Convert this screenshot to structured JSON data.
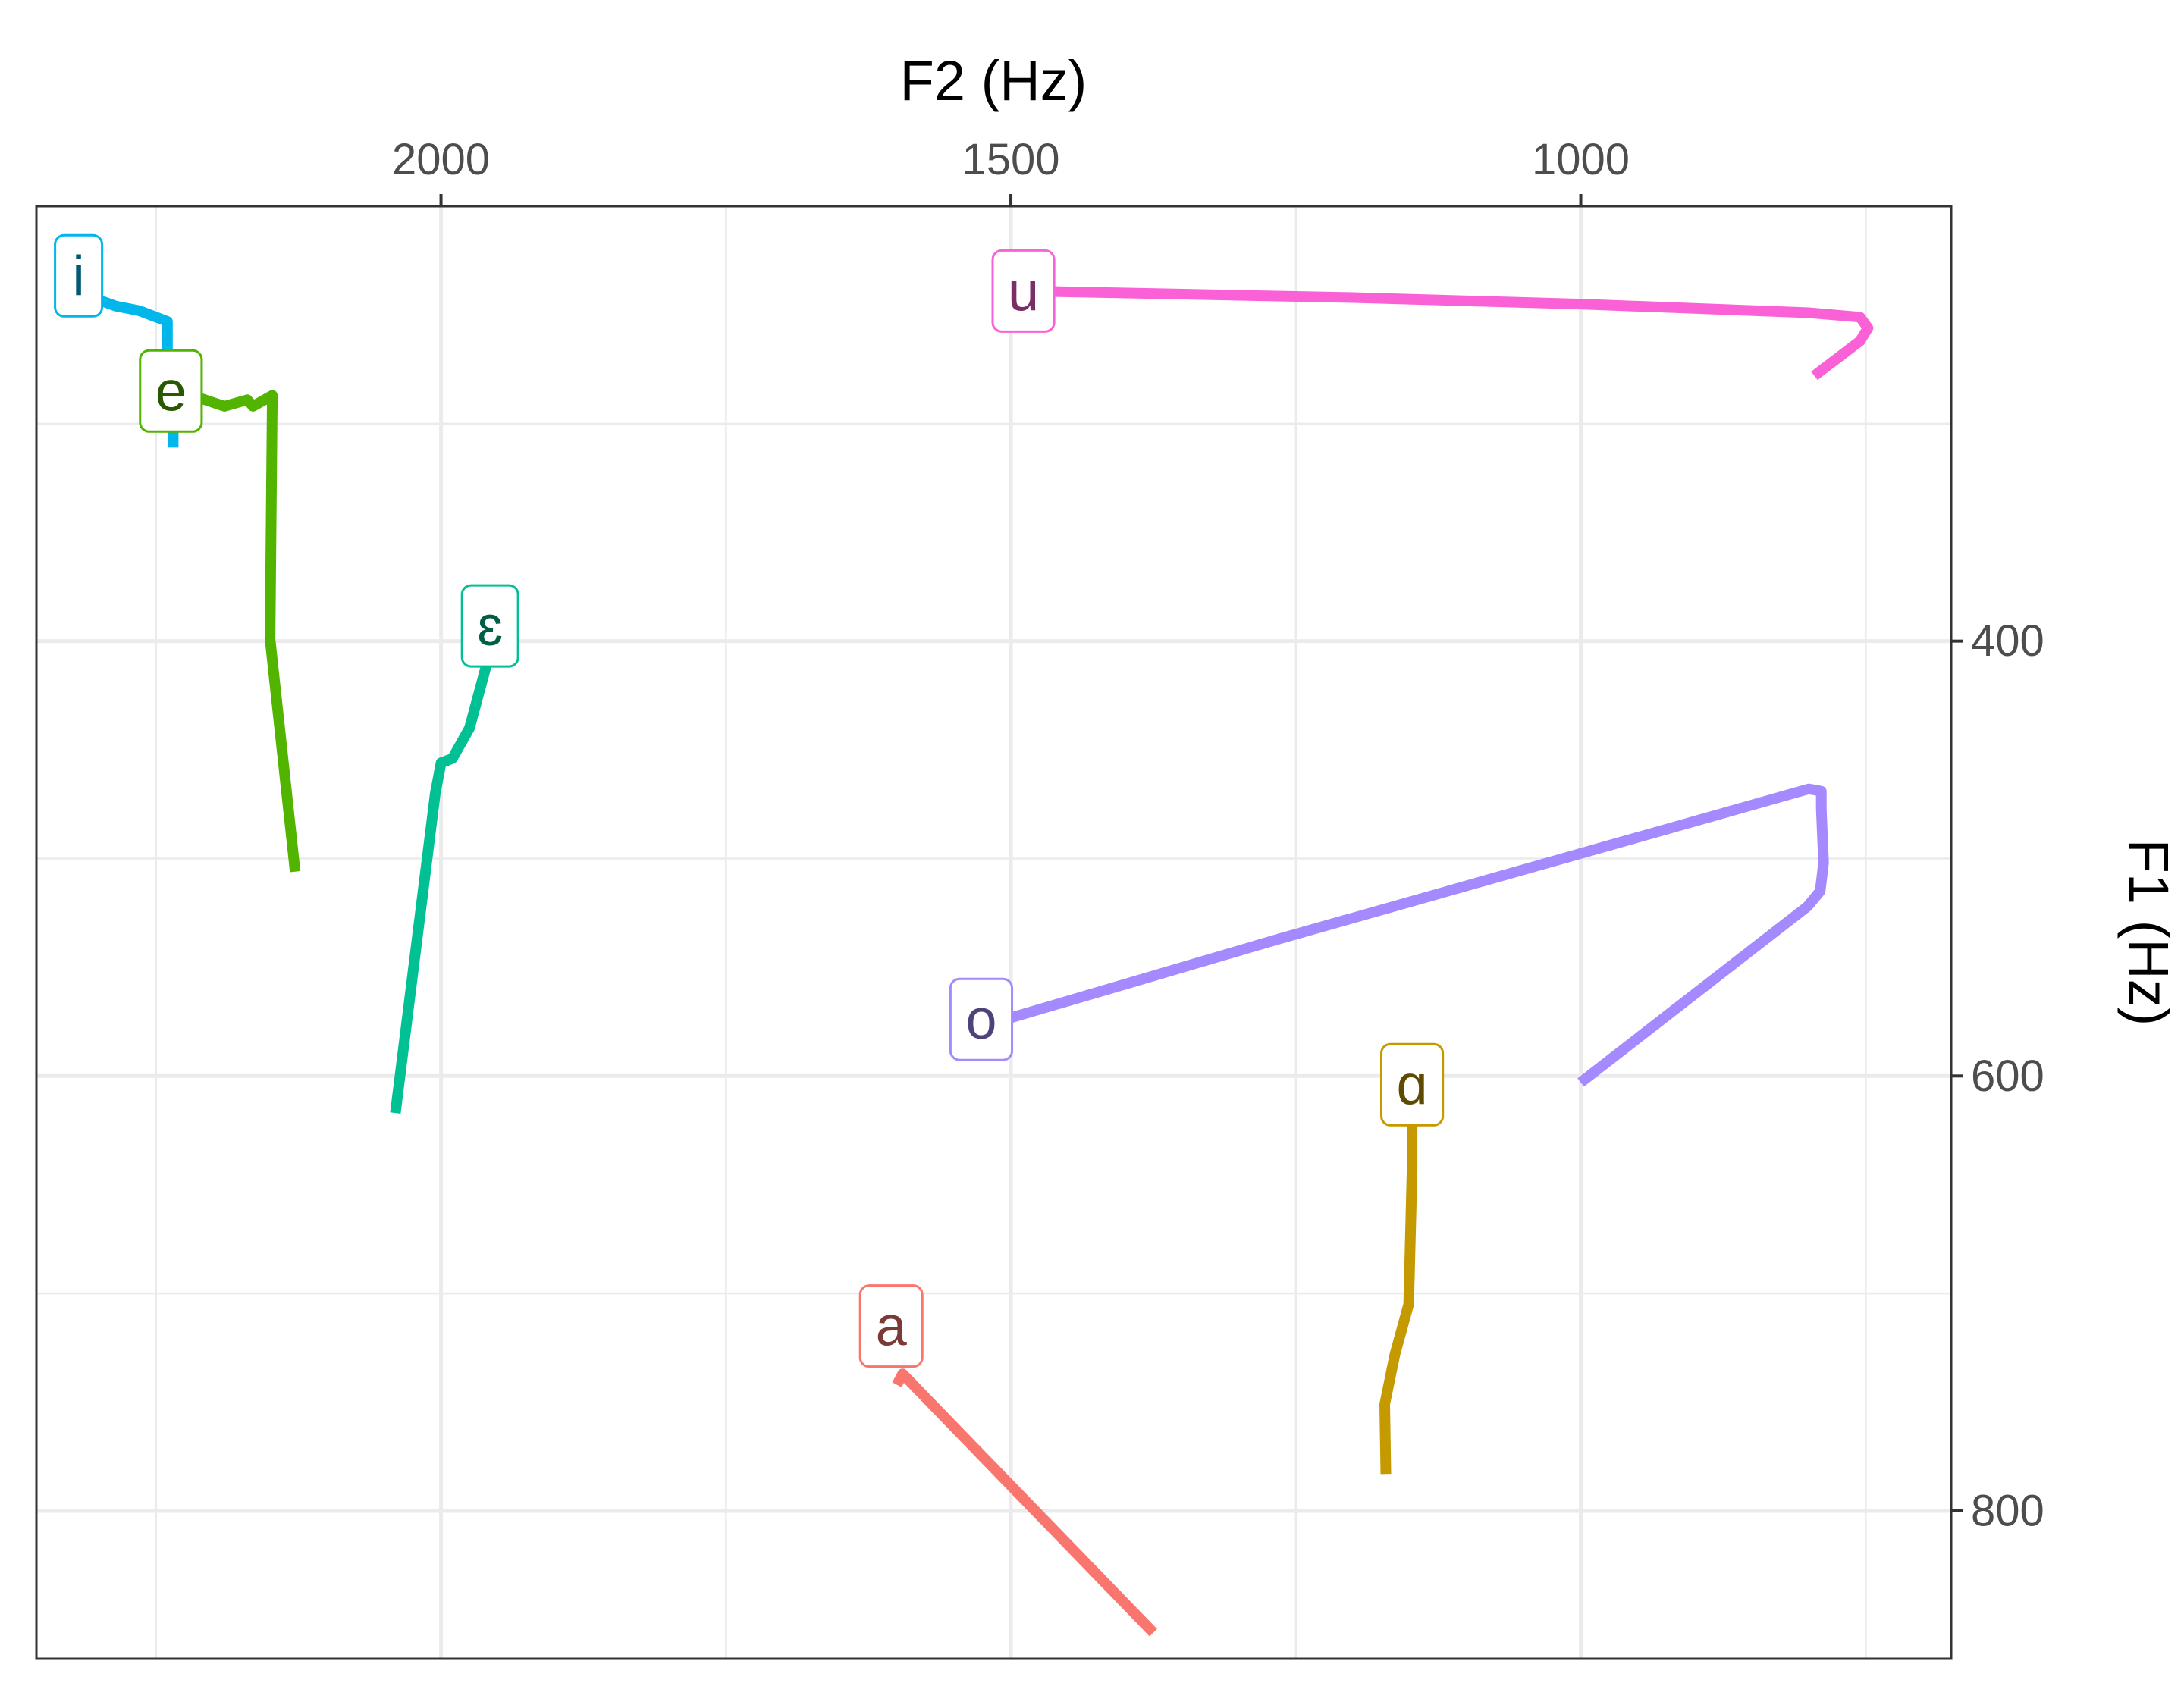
{
  "chart_data": {
    "type": "line",
    "xlabel": "F2 (Hz)",
    "ylabel": "F1 (Hz)",
    "x_axis": {
      "position": "top",
      "reversed": true,
      "lim": [
        2355,
        675
      ],
      "ticks": [
        2000,
        1500,
        1000
      ],
      "tick_labels": [
        "2000",
        "1500",
        "1000"
      ],
      "minor_ticks": [
        2250,
        1750,
        1250,
        750
      ]
    },
    "y_axis": {
      "position": "right",
      "reversed": true,
      "lim": [
        200,
        868
      ],
      "ticks": [
        400,
        600,
        800
      ],
      "tick_labels": [
        "400",
        "600",
        "800"
      ],
      "minor_ticks": [
        300,
        500,
        700
      ]
    },
    "grid": true,
    "legend": "none (direct labels)",
    "series": [
      {
        "name": "a",
        "color": "#F8766D",
        "label_color": "#7A3A36",
        "f2": [
          1375,
          1595,
          1600
        ],
        "f1": [
          856,
          737,
          742
        ]
      },
      {
        "name": "ɑ",
        "color": "#C49A00",
        "label_color": "#5E4A00",
        "f2": [
          1148,
          1148,
          1151,
          1163,
          1172,
          1171
        ],
        "f1": [
          623,
          643,
          705,
          728,
          751,
          783
        ]
      },
      {
        "name": "e",
        "color": "#53B400",
        "label_color": "#285800",
        "f2": [
          2230,
          2190,
          2170,
          2165,
          2148,
          2150,
          2128
        ],
        "f1": [
          285,
          292,
          289,
          292,
          287,
          399,
          506
        ]
      },
      {
        "name": "ɛ",
        "color": "#00C094",
        "label_color": "#005E48",
        "f2": [
          1955,
          1975,
          1990,
          2000,
          2005,
          2040
        ],
        "f1": [
          401,
          440,
          454,
          456,
          470,
          617
        ]
      },
      {
        "name": "i",
        "color": "#00B6EB",
        "label_color": "#005872",
        "f2": [
          2318,
          2306,
          2285,
          2265,
          2240,
          2240,
          2235,
          2235
        ],
        "f1": [
          233,
          242,
          246,
          248,
          253,
          266,
          284,
          311
        ]
      },
      {
        "name": "o",
        "color": "#A58AFF",
        "label_color": "#4F427A",
        "f2": [
          1505,
          1265,
          800,
          789,
          789,
          787,
          790,
          801,
          1000
        ],
        "f1": [
          574,
          537,
          468,
          469,
          477,
          502,
          515,
          522,
          603
        ]
      },
      {
        "name": "u",
        "color": "#FB61D7",
        "label_color": "#7A2F68",
        "f2": [
          1485,
          1200,
          1000,
          800,
          755,
          748,
          755,
          770,
          795
        ],
        "f1": [
          239,
          242,
          245,
          249,
          251,
          256,
          262,
          268,
          278
        ]
      }
    ],
    "label_points": [
      {
        "name": "a",
        "f2": 1605,
        "f1": 715
      },
      {
        "name": "ɑ",
        "f2": 1148,
        "f1": 604
      },
      {
        "name": "e",
        "f2": 2237,
        "f1": 285
      },
      {
        "name": "ɛ",
        "f2": 1957,
        "f1": 393
      },
      {
        "name": "i",
        "f2": 2318,
        "f1": 232
      },
      {
        "name": "o",
        "f2": 1526,
        "f1": 574
      },
      {
        "name": "u",
        "f2": 1489,
        "f1": 239
      }
    ]
  }
}
